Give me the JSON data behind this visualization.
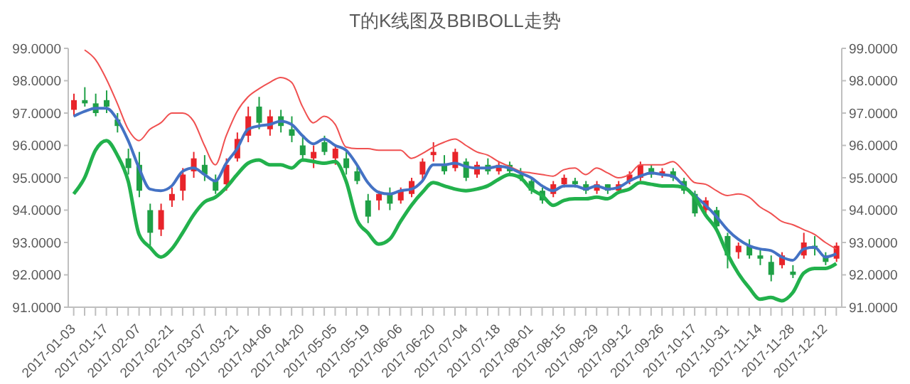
{
  "chart_data": {
    "type": "candlestick",
    "title": "T的K线图及BBIBOLL走势",
    "categories": [
      "2017-01-03",
      null,
      null,
      "2017-01-17",
      null,
      null,
      "2017-02-07",
      null,
      null,
      "2017-02-21",
      null,
      null,
      "2017-03-07",
      null,
      null,
      "2017-03-21",
      null,
      null,
      "2017-04-06",
      null,
      null,
      "2017-04-20",
      null,
      null,
      "2017-05-05",
      null,
      null,
      "2017-05-19",
      null,
      null,
      "2017-06-06",
      null,
      null,
      "2017-06-20",
      null,
      null,
      "2017-07-04",
      null,
      null,
      "2017-07-18",
      null,
      null,
      "2017-08-01",
      null,
      null,
      "2017-08-15",
      null,
      null,
      "2017-08-29",
      null,
      null,
      "2017-09-12",
      null,
      null,
      "2017-09-26",
      null,
      null,
      "2017-10-17",
      null,
      null,
      "2017-10-31",
      null,
      null,
      "2017-11-14",
      null,
      null,
      "2017-11-28",
      null,
      null,
      "2017-12-12",
      null
    ],
    "ohlc": [
      [
        97.1,
        97.6,
        96.9,
        97.4
      ],
      [
        97.4,
        97.8,
        97.2,
        97.3
      ],
      [
        97.3,
        97.6,
        96.9,
        97.0
      ],
      [
        97.4,
        97.7,
        97.0,
        97.2
      ],
      [
        96.8,
        97.0,
        96.4,
        96.6
      ],
      [
        95.6,
        95.9,
        95.1,
        95.3
      ],
      [
        95.4,
        95.8,
        94.4,
        94.6
      ],
      [
        94.0,
        94.2,
        92.9,
        93.3
      ],
      [
        93.4,
        94.2,
        93.2,
        94.0
      ],
      [
        94.3,
        94.7,
        94.1,
        94.5
      ],
      [
        94.6,
        95.3,
        94.3,
        95.1
      ],
      [
        95.2,
        95.8,
        95.0,
        95.6
      ],
      [
        95.4,
        95.7,
        94.9,
        95.1
      ],
      [
        94.9,
        95.1,
        94.5,
        94.6
      ],
      [
        94.8,
        95.6,
        94.6,
        95.4
      ],
      [
        95.6,
        96.4,
        95.5,
        96.2
      ],
      [
        96.3,
        97.2,
        96.1,
        96.9
      ],
      [
        97.2,
        97.5,
        96.5,
        96.7
      ],
      [
        96.5,
        97.1,
        96.3,
        96.9
      ],
      [
        96.9,
        97.1,
        96.4,
        96.6
      ],
      [
        96.5,
        96.9,
        96.1,
        96.3
      ],
      [
        96.0,
        96.3,
        95.5,
        95.7
      ],
      [
        95.6,
        96.0,
        95.3,
        95.8
      ],
      [
        96.1,
        96.3,
        95.7,
        95.8
      ],
      [
        95.6,
        96.0,
        95.4,
        95.9
      ],
      [
        95.6,
        95.8,
        95.1,
        95.3
      ],
      [
        95.2,
        95.4,
        94.8,
        94.9
      ],
      [
        94.3,
        94.5,
        93.6,
        93.8
      ],
      [
        94.3,
        94.6,
        94.0,
        94.5
      ],
      [
        94.5,
        94.7,
        94.0,
        94.2
      ],
      [
        94.3,
        94.7,
        94.2,
        94.6
      ],
      [
        94.5,
        95.0,
        94.4,
        94.9
      ],
      [
        95.1,
        95.6,
        94.9,
        95.5
      ],
      [
        95.7,
        96.1,
        95.5,
        95.8
      ],
      [
        95.4,
        95.7,
        95.1,
        95.2
      ],
      [
        95.3,
        95.9,
        95.2,
        95.8
      ],
      [
        95.5,
        95.6,
        94.9,
        95.0
      ],
      [
        95.1,
        95.5,
        95.0,
        95.4
      ],
      [
        95.4,
        95.6,
        95.1,
        95.2
      ],
      [
        95.2,
        95.5,
        95.1,
        95.4
      ],
      [
        95.4,
        95.5,
        95.1,
        95.2
      ],
      [
        95.1,
        95.3,
        94.9,
        95.0
      ],
      [
        94.9,
        95.0,
        94.5,
        94.6
      ],
      [
        94.6,
        94.7,
        94.2,
        94.3
      ],
      [
        94.5,
        94.9,
        94.4,
        94.8
      ],
      [
        94.8,
        95.1,
        94.7,
        95.0
      ],
      [
        94.9,
        95.0,
        94.7,
        94.8
      ],
      [
        94.8,
        94.9,
        94.5,
        94.6
      ],
      [
        94.6,
        94.9,
        94.5,
        94.8
      ],
      [
        94.8,
        94.8,
        94.5,
        94.6
      ],
      [
        94.6,
        94.9,
        94.5,
        94.8
      ],
      [
        94.9,
        95.2,
        94.8,
        95.1
      ],
      [
        95.0,
        95.5,
        94.9,
        95.4
      ],
      [
        95.3,
        95.4,
        95.0,
        95.1
      ],
      [
        95.1,
        95.3,
        95.0,
        95.2
      ],
      [
        95.2,
        95.3,
        94.9,
        95.0
      ],
      [
        94.9,
        95.0,
        94.5,
        94.6
      ],
      [
        94.5,
        94.6,
        93.8,
        93.9
      ],
      [
        94.0,
        94.4,
        93.9,
        94.3
      ],
      [
        94.0,
        94.1,
        93.4,
        93.5
      ],
      [
        93.2,
        93.3,
        92.2,
        92.6
      ],
      [
        92.7,
        93.0,
        92.5,
        92.9
      ],
      [
        92.9,
        93.1,
        92.5,
        92.6
      ],
      [
        92.6,
        92.8,
        92.3,
        92.5
      ],
      [
        92.4,
        92.6,
        91.8,
        92.0
      ],
      [
        92.3,
        92.7,
        92.2,
        92.6
      ],
      [
        92.1,
        92.3,
        91.9,
        92.0
      ],
      [
        92.6,
        93.3,
        92.5,
        93.0
      ],
      [
        92.9,
        93.2,
        92.6,
        92.8
      ],
      [
        92.6,
        92.7,
        92.3,
        92.4
      ],
      [
        92.5,
        93.0,
        92.4,
        92.9
      ]
    ],
    "colors": [
      "#e8242a",
      "#1fa046",
      "#1fa046",
      "#1fa046",
      "#1fa046",
      "#1fa046",
      "#1fa046",
      "#1fa046",
      "#e8242a",
      "#e8242a",
      "#e8242a",
      "#e8242a",
      "#1fa046",
      "#1fa046",
      "#e8242a",
      "#e8242a",
      "#e8242a",
      "#1fa046",
      "#e8242a",
      "#1fa046",
      "#1fa046",
      "#1fa046",
      "#e8242a",
      "#1fa046",
      "#e8242a",
      "#1fa046",
      "#1fa046",
      "#1fa046",
      "#e8242a",
      "#1fa046",
      "#e8242a",
      "#e8242a",
      "#e8242a",
      "#e8242a",
      "#1fa046",
      "#e8242a",
      "#1fa046",
      "#e8242a",
      "#1fa046",
      "#e8242a",
      "#1fa046",
      "#1fa046",
      "#1fa046",
      "#1fa046",
      "#e8242a",
      "#e8242a",
      "#1fa046",
      "#1fa046",
      "#e8242a",
      "#1fa046",
      "#e8242a",
      "#e8242a",
      "#e8242a",
      "#1fa046",
      "#e8242a",
      "#1fa046",
      "#1fa046",
      "#1fa046",
      "#e8242a",
      "#1fa046",
      "#1fa046",
      "#e8242a",
      "#1fa046",
      "#1fa046",
      "#1fa046",
      "#e8242a",
      "#1fa046",
      "#e8242a",
      "#1fa046",
      "#1fa046",
      "#e8242a"
    ],
    "series": [
      {
        "type": "line",
        "color": "#f05050",
        "values": [
          null,
          98.95,
          98.65,
          98.05,
          97.3,
          96.5,
          96.15,
          96.5,
          96.7,
          97.0,
          97.0,
          96.75,
          96.0,
          95.4,
          96.3,
          97.05,
          97.5,
          97.75,
          97.95,
          98.1,
          97.95,
          97.2,
          96.7,
          96.9,
          96.65,
          95.95,
          95.9,
          95.9,
          95.85,
          95.85,
          95.85,
          95.6,
          95.75,
          95.95,
          96.1,
          96.2,
          96.0,
          95.8,
          95.7,
          95.5,
          95.35,
          95.2,
          95.15,
          95.1,
          95.05,
          95.25,
          95.3,
          95.1,
          95.3,
          95.15,
          95.0,
          95.1,
          95.4,
          95.4,
          95.4,
          95.5,
          95.2,
          94.85,
          94.8,
          94.6,
          94.45,
          94.5,
          94.4,
          94.1,
          93.9,
          93.65,
          93.55,
          93.4,
          93.25,
          93.0,
          92.8
        ]
      },
      {
        "type": "line",
        "color": "#4472c4",
        "values": [
          96.9,
          97.05,
          97.15,
          97.15,
          96.8,
          96.15,
          95.3,
          94.65,
          94.6,
          94.75,
          95.2,
          95.3,
          95.1,
          94.9,
          95.45,
          95.9,
          96.5,
          96.6,
          96.65,
          96.75,
          96.65,
          96.3,
          96.05,
          96.2,
          96.0,
          95.85,
          95.4,
          94.85,
          94.55,
          94.5,
          94.6,
          94.65,
          94.9,
          95.4,
          95.4,
          95.45,
          95.35,
          95.3,
          95.3,
          95.35,
          95.3,
          95.15,
          95.0,
          94.75,
          94.6,
          94.75,
          94.75,
          94.65,
          94.75,
          94.65,
          94.7,
          94.9,
          95.05,
          95.15,
          95.1,
          95.05,
          94.75,
          94.45,
          94.15,
          93.8,
          93.4,
          93.1,
          92.9,
          92.8,
          92.75,
          92.55,
          92.45,
          92.8,
          92.85,
          92.55,
          92.65
        ]
      },
      {
        "type": "line",
        "color": "#22b14c",
        "values": [
          94.5,
          95.0,
          95.85,
          96.15,
          95.7,
          94.9,
          93.25,
          92.85,
          92.55,
          92.8,
          93.3,
          93.85,
          94.25,
          94.4,
          94.7,
          95.1,
          95.45,
          95.55,
          95.4,
          95.4,
          95.3,
          95.55,
          95.5,
          95.45,
          95.5,
          94.9,
          93.7,
          93.3,
          92.95,
          93.1,
          93.65,
          94.15,
          94.55,
          94.85,
          94.75,
          94.65,
          94.6,
          94.65,
          94.75,
          94.95,
          95.1,
          95.0,
          94.65,
          94.45,
          94.15,
          94.3,
          94.35,
          94.35,
          94.4,
          94.35,
          94.55,
          94.65,
          94.85,
          94.8,
          94.75,
          94.75,
          94.7,
          94.4,
          93.85,
          93.4,
          92.65,
          92.05,
          91.6,
          91.25,
          91.3,
          91.2,
          91.45,
          92.05,
          92.2,
          92.2,
          92.35
        ]
      }
    ],
    "ylim": [
      91,
      99
    ],
    "yticks": [
      {
        "value": 91,
        "label": "91.0000"
      },
      {
        "value": 92,
        "label": "92.0000"
      },
      {
        "value": 93,
        "label": "93.0000"
      },
      {
        "value": 94,
        "label": "94.0000"
      },
      {
        "value": 95,
        "label": "95.0000"
      },
      {
        "value": 96,
        "label": "96.0000"
      },
      {
        "value": 97,
        "label": "97.0000"
      },
      {
        "value": 98,
        "label": "98.0000"
      },
      {
        "value": 99,
        "label": "99.0000"
      }
    ],
    "y2lim": [
      91,
      99
    ],
    "y2ticks": [
      {
        "value": 91,
        "label": "91.0000"
      },
      {
        "value": 92,
        "label": "92.0000"
      },
      {
        "value": 93,
        "label": "93.0000"
      },
      {
        "value": 94,
        "label": "94.0000"
      },
      {
        "value": 95,
        "label": "95.0000"
      },
      {
        "value": 96,
        "label": "96.0000"
      },
      {
        "value": 97,
        "label": "97.0000"
      },
      {
        "value": 98,
        "label": "98.0000"
      },
      {
        "value": 99,
        "label": "99.0000"
      }
    ]
  }
}
